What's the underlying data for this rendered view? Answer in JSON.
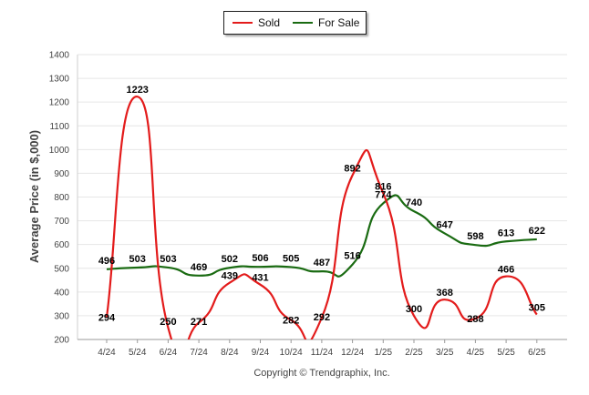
{
  "chart_data": {
    "type": "line",
    "categories": [
      "4/24",
      "5/24",
      "6/24",
      "7/24",
      "8/24",
      "9/24",
      "10/24",
      "11/24",
      "12/24",
      "1/25",
      "2/25",
      "3/25",
      "4/25",
      "5/25",
      "6/25"
    ],
    "series": [
      {
        "name": "Sold",
        "color": "#e31b1b",
        "values": [
          294,
          1223,
          250,
          271,
          439,
          431,
          282,
          292,
          892,
          816,
          300,
          368,
          288,
          466,
          305
        ]
      },
      {
        "name": "For Sale",
        "color": "#1a6b12",
        "values": [
          496,
          503,
          503,
          469,
          502,
          506,
          505,
          487,
          516,
          774,
          740,
          647,
          598,
          613,
          622
        ]
      }
    ],
    "ylabel": "Average Price (in $,000)",
    "ylim": [
      200,
      1400
    ],
    "yticks": [
      200,
      300,
      400,
      500,
      600,
      700,
      800,
      900,
      1000,
      1100,
      1200,
      1300,
      1400
    ],
    "grid": true,
    "legend_position": "top-center"
  },
  "footer": "Copyright © Trendgraphix, Inc."
}
